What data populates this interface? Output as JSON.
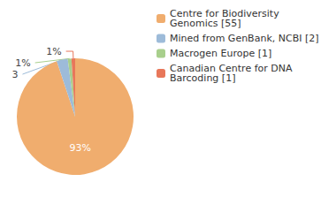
{
  "chart_data": {
    "type": "pie",
    "categories": [
      "Centre for Biodiversity Genomics [55]",
      "Mined from GenBank, NCBI [2]",
      "Macrogen Europe [1]",
      "Canadian Centre for DNA Barcoding [1]"
    ],
    "values": [
      93,
      3,
      1,
      1
    ],
    "value_labels": [
      "93%",
      "3%",
      "1%",
      "1%"
    ],
    "colors": [
      "#f0ad6e",
      "#9dbbd9",
      "#a8cf8c",
      "#e8775a"
    ],
    "data_labels": true,
    "legend": "top-right"
  }
}
